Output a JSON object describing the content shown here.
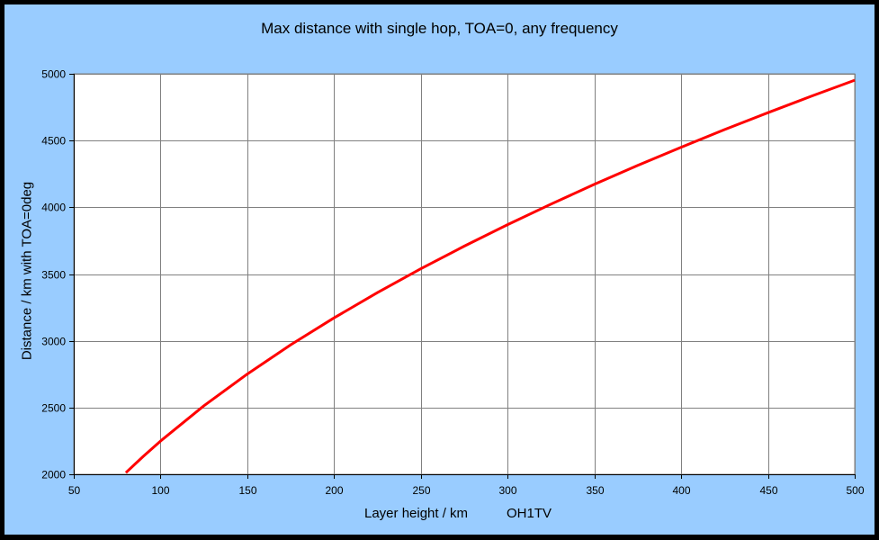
{
  "chart_data": {
    "type": "line",
    "title": "Max distance with single hop, TOA=0,  any frequency",
    "xlabel": "Layer height  / km",
    "ylabel": "Distance  / km  with  TOA=0deg",
    "annotation": "OH1TV",
    "xlim": [
      50,
      500
    ],
    "ylim": [
      2000,
      5000
    ],
    "x_ticks": [
      50,
      100,
      150,
      200,
      250,
      300,
      350,
      400,
      450,
      500
    ],
    "y_ticks": [
      2000,
      2500,
      3000,
      3500,
      4000,
      4500,
      5000
    ],
    "grid": true,
    "legend": null,
    "series": [
      {
        "name": "Max distance",
        "color": "#ff0000",
        "x": [
          80,
          90,
          100,
          125,
          150,
          175,
          200,
          225,
          250,
          275,
          300,
          325,
          350,
          375,
          400,
          425,
          450,
          475,
          500
        ],
        "values": [
          2012,
          2134,
          2249,
          2514,
          2751,
          2970,
          3172,
          3361,
          3540,
          3709,
          3870,
          4024,
          4172,
          4314,
          4450,
          4582,
          4709,
          4832,
          4952
        ]
      }
    ]
  },
  "colors": {
    "background": "#99ccff",
    "frame": "#000000",
    "plot": "#ffffff",
    "grid": "#808080",
    "line": "#ff0000"
  }
}
